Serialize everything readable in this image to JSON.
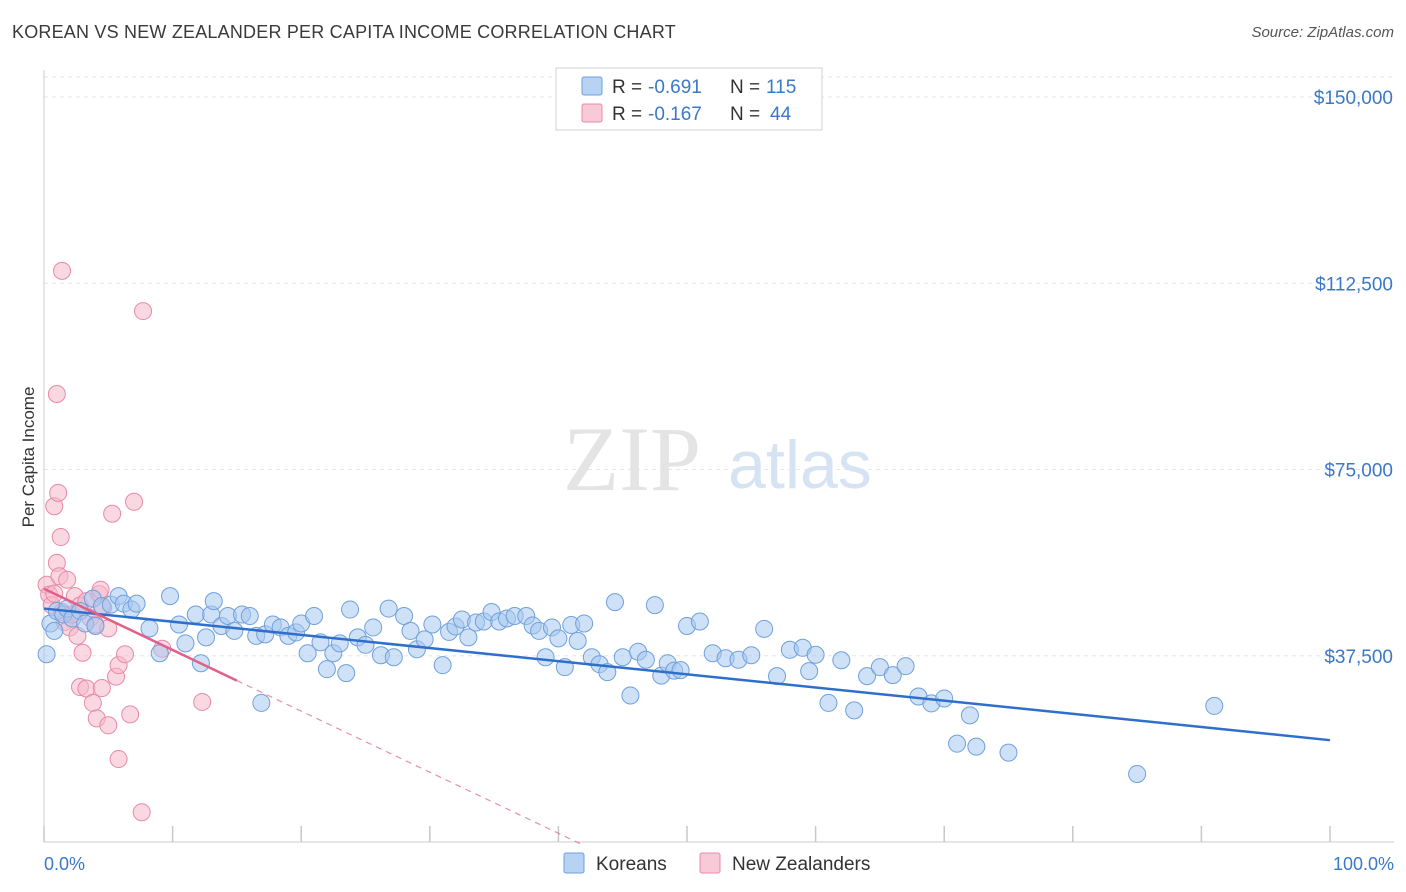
{
  "header": {
    "title": "KOREAN VS NEW ZEALANDER PER CAPITA INCOME CORRELATION CHART",
    "source": "Source: ZipAtlas.com"
  },
  "watermark": {
    "zip": "ZIP",
    "atlas": "atlas"
  },
  "legend": {
    "rows": [
      {
        "r_label": "R =",
        "r_value": "-0.691",
        "n_label": "N =",
        "n_value": "115"
      },
      {
        "r_label": "R =",
        "r_value": "-0.167",
        "n_label": "N =",
        "n_value": "44"
      }
    ]
  },
  "bottom_legend": [
    "Koreans",
    "New Zealanders"
  ],
  "colors": {
    "koreans_fill": "#a8c8f0",
    "koreans_stroke": "#6fa0dc",
    "koreans_line": "#2f6fcc",
    "nz_fill": "#f5b8cb",
    "nz_stroke": "#e889a8",
    "nz_line": "#e0608a",
    "tick_text": "#3a78c9"
  },
  "chart_data": {
    "type": "scatter",
    "title": "KOREAN VS NEW ZEALANDER PER CAPITA INCOME CORRELATION CHART",
    "xlabel": "",
    "ylabel": "Per Capita Income",
    "x_tick_labels": [
      "0.0%",
      "100.0%"
    ],
    "y_tick_labels": [
      "$37,500",
      "$75,000",
      "$112,500",
      "$150,000"
    ],
    "y_ticks": [
      37500,
      75000,
      112500,
      150000
    ],
    "xlim": [
      0,
      100
    ],
    "ylim": [
      0,
      153000
    ],
    "grid": true,
    "legend_position": "top-center",
    "series": [
      {
        "name": "Koreans",
        "r": -0.691,
        "n": 115,
        "trend": {
          "x": [
            0,
            100
          ],
          "y": [
            47000,
            20500
          ]
        },
        "points": [
          [
            0.2,
            37800
          ],
          [
            0.5,
            44000
          ],
          [
            0.8,
            42500
          ],
          [
            1.0,
            46500
          ],
          [
            1.5,
            45800
          ],
          [
            1.8,
            47000
          ],
          [
            2.2,
            45000
          ],
          [
            2.8,
            46500
          ],
          [
            3.2,
            44000
          ],
          [
            3.8,
            49000
          ],
          [
            4.0,
            43500
          ],
          [
            4.5,
            47500
          ],
          [
            5.2,
            47800
          ],
          [
            5.8,
            49500
          ],
          [
            6.2,
            48000
          ],
          [
            6.8,
            46800
          ],
          [
            7.2,
            48000
          ],
          [
            8.2,
            43000
          ],
          [
            9.0,
            38000
          ],
          [
            9.8,
            49500
          ],
          [
            10.5,
            43800
          ],
          [
            11.0,
            40000
          ],
          [
            11.8,
            45800
          ],
          [
            12.2,
            36000
          ],
          [
            12.6,
            41200
          ],
          [
            13.0,
            45800
          ],
          [
            13.2,
            48500
          ],
          [
            13.8,
            43500
          ],
          [
            14.3,
            45500
          ],
          [
            14.8,
            42500
          ],
          [
            15.4,
            45800
          ],
          [
            16.0,
            45500
          ],
          [
            16.5,
            41500
          ],
          [
            16.9,
            28000
          ],
          [
            17.2,
            41800
          ],
          [
            17.8,
            43800
          ],
          [
            18.4,
            43200
          ],
          [
            19.0,
            41500
          ],
          [
            19.6,
            42200
          ],
          [
            20.0,
            44000
          ],
          [
            20.5,
            38000
          ],
          [
            21.0,
            45500
          ],
          [
            21.5,
            40200
          ],
          [
            22.0,
            34800
          ],
          [
            22.5,
            38000
          ],
          [
            23.0,
            40000
          ],
          [
            23.5,
            34000
          ],
          [
            23.8,
            46800
          ],
          [
            24.4,
            41200
          ],
          [
            25.0,
            39700
          ],
          [
            25.6,
            43200
          ],
          [
            26.2,
            37600
          ],
          [
            26.8,
            47000
          ],
          [
            27.2,
            37200
          ],
          [
            28.0,
            45500
          ],
          [
            28.5,
            42500
          ],
          [
            29.0,
            38800
          ],
          [
            29.6,
            40800
          ],
          [
            30.2,
            43800
          ],
          [
            31.0,
            35600
          ],
          [
            31.5,
            42300
          ],
          [
            32.0,
            43400
          ],
          [
            32.5,
            44800
          ],
          [
            33.0,
            41200
          ],
          [
            33.6,
            44200
          ],
          [
            34.2,
            44400
          ],
          [
            34.8,
            46300
          ],
          [
            35.4,
            44400
          ],
          [
            36.0,
            45000
          ],
          [
            36.6,
            45500
          ],
          [
            37.5,
            45500
          ],
          [
            38.0,
            43600
          ],
          [
            38.5,
            42500
          ],
          [
            39.0,
            37200
          ],
          [
            39.5,
            43200
          ],
          [
            40.0,
            41000
          ],
          [
            40.5,
            35200
          ],
          [
            41.0,
            43700
          ],
          [
            41.5,
            40500
          ],
          [
            42.0,
            44000
          ],
          [
            42.6,
            37200
          ],
          [
            43.2,
            35800
          ],
          [
            43.8,
            34200
          ],
          [
            44.4,
            48300
          ],
          [
            45.0,
            37200
          ],
          [
            45.6,
            29500
          ],
          [
            46.2,
            38300
          ],
          [
            46.8,
            36700
          ],
          [
            47.5,
            47700
          ],
          [
            48.0,
            33500
          ],
          [
            48.5,
            36000
          ],
          [
            49.0,
            34500
          ],
          [
            49.5,
            34600
          ],
          [
            50.0,
            43500
          ],
          [
            51.0,
            44400
          ],
          [
            52.0,
            38000
          ],
          [
            53.0,
            37000
          ],
          [
            54.0,
            36700
          ],
          [
            55.0,
            37600
          ],
          [
            56.0,
            42900
          ],
          [
            57.0,
            33400
          ],
          [
            58.0,
            38700
          ],
          [
            59.0,
            39100
          ],
          [
            59.5,
            34400
          ],
          [
            60.0,
            37700
          ],
          [
            61.0,
            28000
          ],
          [
            62.0,
            36600
          ],
          [
            63.0,
            26500
          ],
          [
            64.0,
            33400
          ],
          [
            65.0,
            35200
          ],
          [
            66.0,
            33600
          ],
          [
            67.0,
            35400
          ],
          [
            68.0,
            29300
          ],
          [
            69.0,
            27900
          ],
          [
            70.0,
            28900
          ],
          [
            71.0,
            19800
          ],
          [
            72.0,
            25500
          ],
          [
            72.5,
            19200
          ],
          [
            75.0,
            18000
          ],
          [
            85.0,
            13700
          ],
          [
            91.0,
            27400
          ]
        ]
      },
      {
        "name": "New Zealanders",
        "r": -0.167,
        "n": 44,
        "trend": {
          "x": [
            0,
            15
          ],
          "y": [
            51000,
            32500
          ],
          "dashed_to": {
            "x": [
              15,
              42
            ],
            "y": [
              32500,
              -700
            ]
          }
        },
        "points": [
          [
            0.2,
            51800
          ],
          [
            0.4,
            49800
          ],
          [
            0.6,
            47700
          ],
          [
            0.8,
            50000
          ],
          [
            1.0,
            56200
          ],
          [
            1.2,
            53500
          ],
          [
            1.4,
            46300
          ],
          [
            1.6,
            44300
          ],
          [
            1.8,
            52800
          ],
          [
            2.0,
            43200
          ],
          [
            2.2,
            45800
          ],
          [
            2.4,
            49500
          ],
          [
            2.6,
            41500
          ],
          [
            2.8,
            47600
          ],
          [
            3.0,
            38100
          ],
          [
            3.3,
            48500
          ],
          [
            3.6,
            45100
          ],
          [
            4.0,
            43800
          ],
          [
            4.3,
            49900
          ],
          [
            4.6,
            47200
          ],
          [
            5.0,
            43000
          ],
          [
            0.8,
            67600
          ],
          [
            1.1,
            70300
          ],
          [
            1.3,
            61400
          ],
          [
            1.0,
            90200
          ],
          [
            1.4,
            115000
          ],
          [
            5.3,
            66100
          ],
          [
            7.0,
            68500
          ],
          [
            7.7,
            106900
          ],
          [
            2.8,
            31200
          ],
          [
            3.3,
            30900
          ],
          [
            3.8,
            28000
          ],
          [
            4.5,
            31000
          ],
          [
            4.1,
            24900
          ],
          [
            5.0,
            23500
          ],
          [
            5.6,
            33300
          ],
          [
            5.8,
            35600
          ],
          [
            6.3,
            37800
          ],
          [
            6.7,
            25700
          ],
          [
            5.8,
            16700
          ],
          [
            7.6,
            6000
          ],
          [
            9.2,
            38900
          ],
          [
            12.3,
            28200
          ],
          [
            4.4,
            50800
          ]
        ]
      }
    ]
  }
}
